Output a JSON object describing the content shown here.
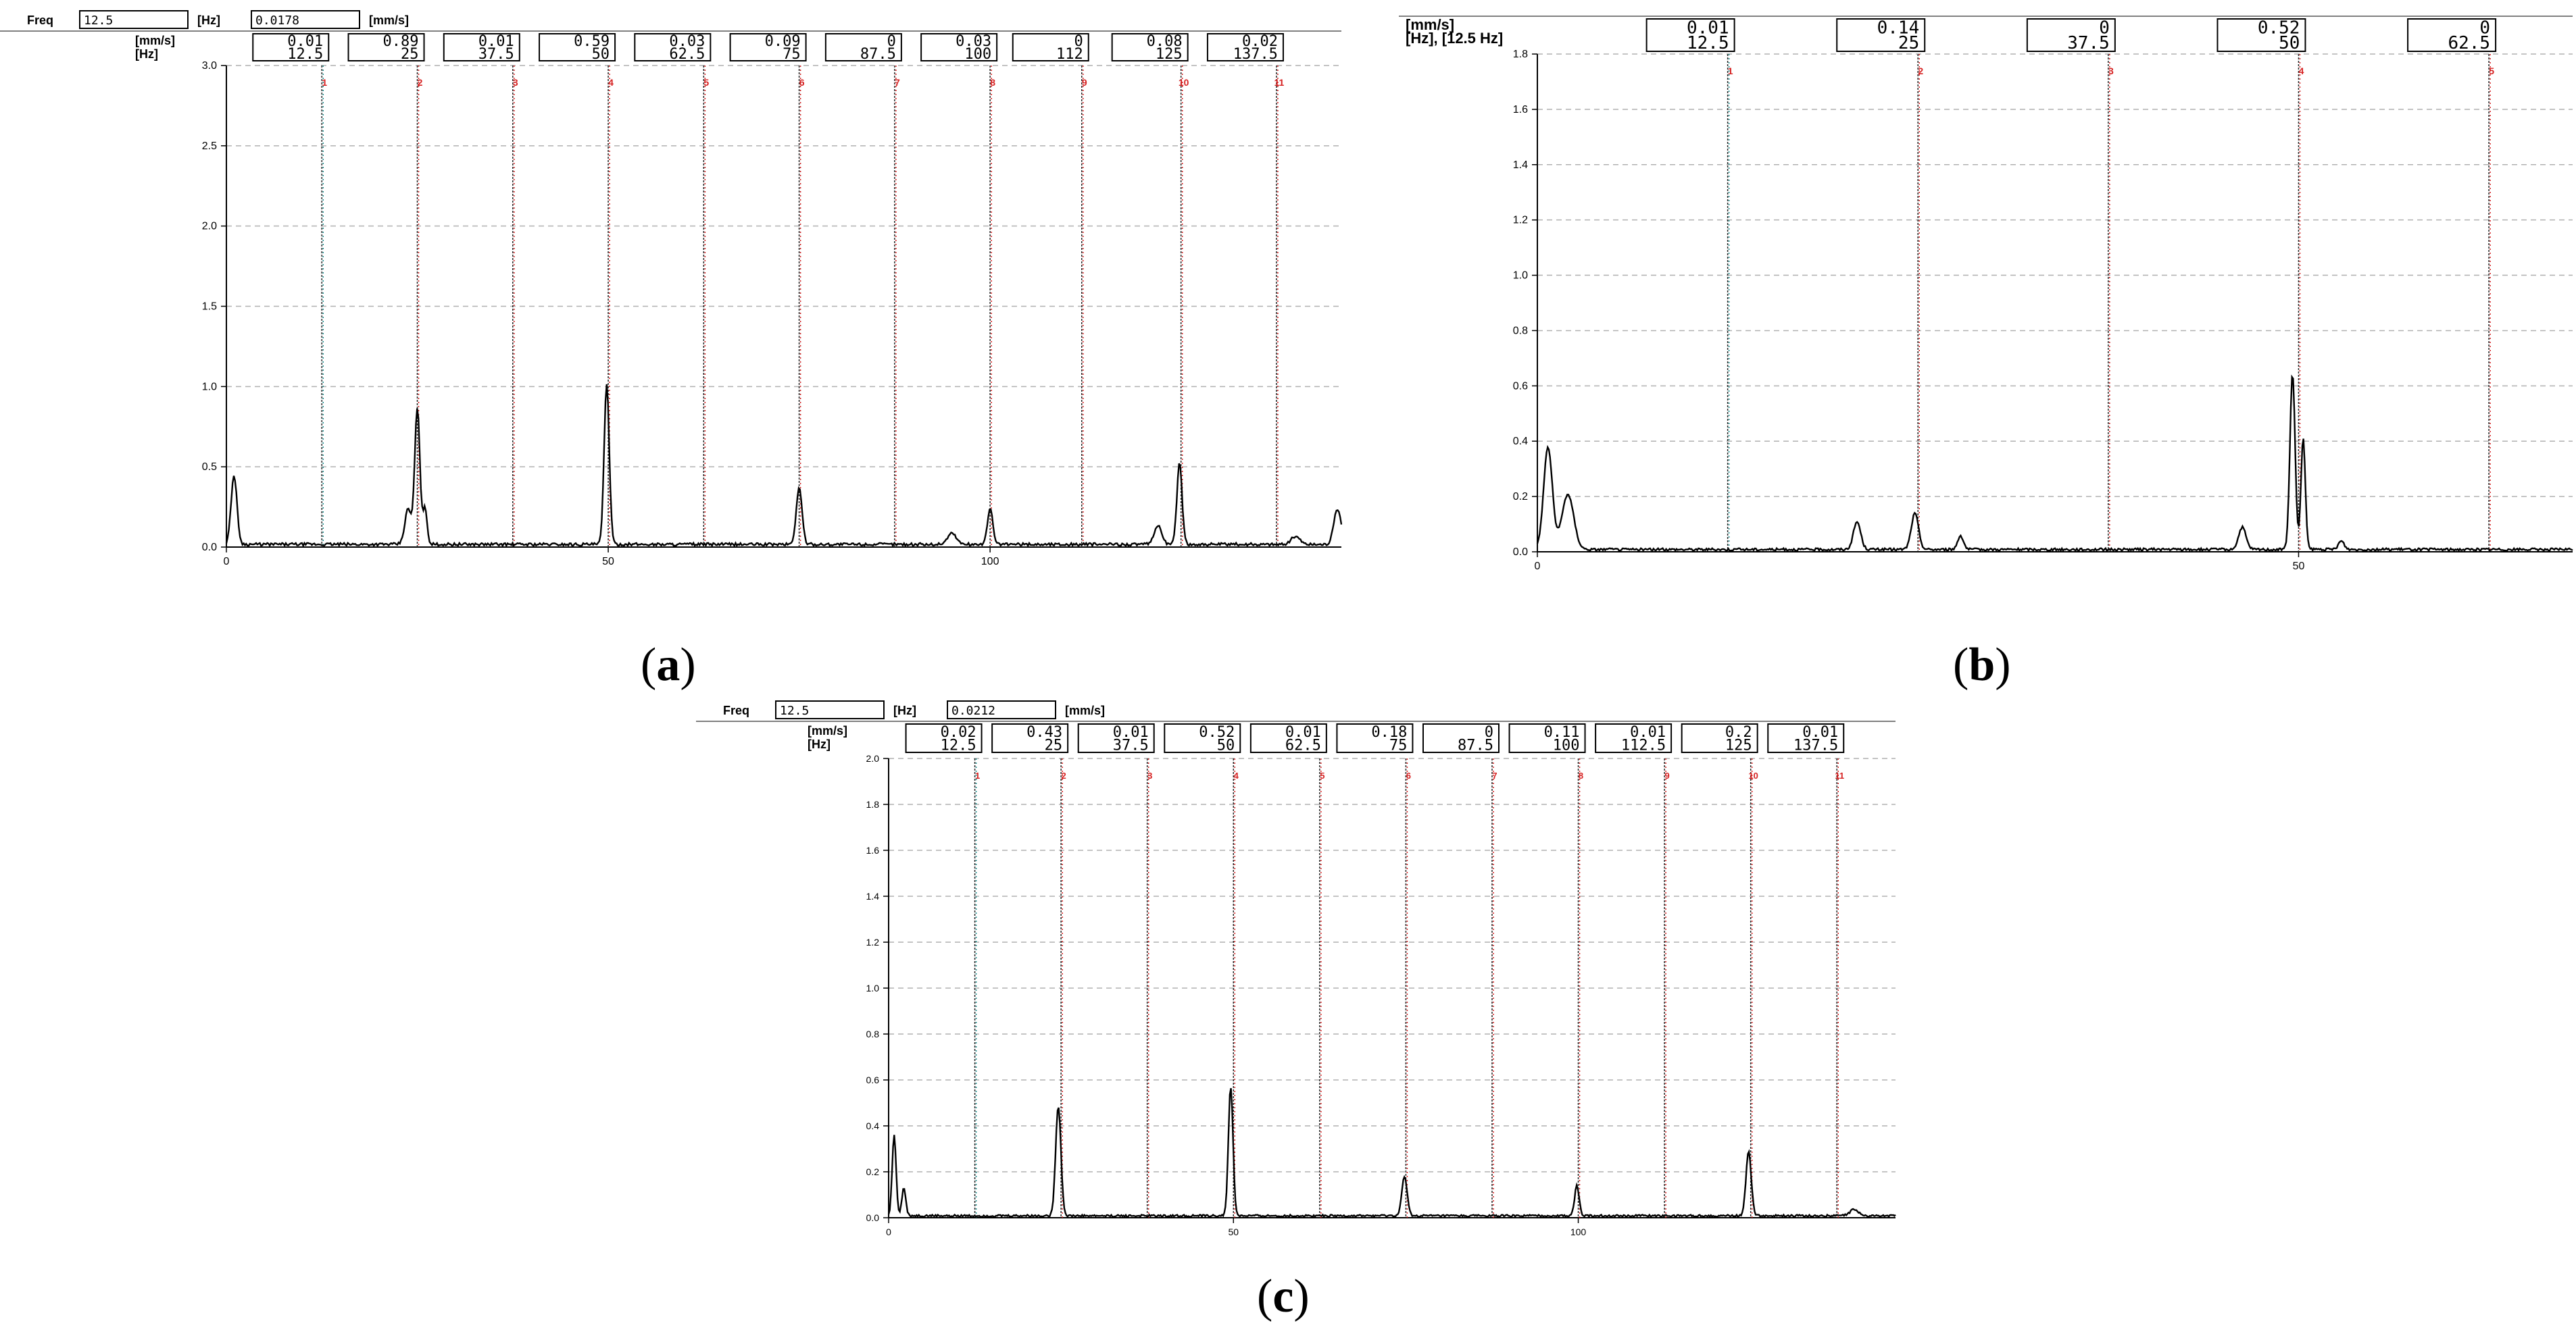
{
  "colors": {
    "trace": "#000000",
    "marker_red": "#d62020",
    "marker_teal": "#1a8c8c",
    "grid": "#b0b0b0",
    "axis": "#000000"
  },
  "captions": {
    "a": "a",
    "b": "b",
    "c": "c"
  },
  "chart_data": [
    {
      "id": "a",
      "type": "line",
      "freq_label": "Freq",
      "freq_value": "12.5",
      "freq_unit": "[Hz]",
      "amp_value": "0.0178",
      "amp_unit": "[mm/s]",
      "row_label_top": "[mm/s]",
      "row_label_bottom": "[Hz]",
      "xlim": [
        0,
        146
      ],
      "ylim": [
        0,
        3.0
      ],
      "yticks": [
        0.0,
        0.5,
        1.0,
        1.5,
        2.0,
        2.5,
        3.0
      ],
      "ytick_labels": [
        "0.0",
        "0.5",
        "1.0",
        "1.5",
        "2.0",
        "2.5",
        "3.0"
      ],
      "xticks": [
        0,
        50,
        100
      ],
      "xtick_labels": [
        "0",
        "50",
        "100"
      ],
      "grid": true,
      "markers": [
        {
          "freq": 12.5,
          "amp": "0.01",
          "hz": "12.5",
          "num": "1",
          "color": "teal"
        },
        {
          "freq": 25,
          "amp": "0.89",
          "hz": "25",
          "num": "2",
          "color": "red"
        },
        {
          "freq": 37.5,
          "amp": "0.01",
          "hz": "37.5",
          "num": "3",
          "color": "red"
        },
        {
          "freq": 50,
          "amp": "0.59",
          "hz": "50",
          "num": "4",
          "color": "red"
        },
        {
          "freq": 62.5,
          "amp": "0.03",
          "hz": "62.5",
          "num": "5",
          "color": "red"
        },
        {
          "freq": 75,
          "amp": "0.09",
          "hz": "75",
          "num": "6",
          "color": "red"
        },
        {
          "freq": 87.5,
          "amp": "0",
          "hz": "87.5",
          "num": "7",
          "color": "red"
        },
        {
          "freq": 100,
          "amp": "0.03",
          "hz": "100",
          "num": "8",
          "color": "red"
        },
        {
          "freq": 112,
          "amp": "0",
          "hz": "112",
          "num": "9",
          "color": "red"
        },
        {
          "freq": 125,
          "amp": "0.08",
          "hz": "125",
          "num": "10",
          "color": "red"
        },
        {
          "freq": 137.5,
          "amp": "0.02",
          "hz": "137.5",
          "num": "11",
          "color": "red"
        }
      ],
      "peaks": [
        {
          "x": 1.0,
          "y": 0.43,
          "w": 0.8
        },
        {
          "x": 23.8,
          "y": 0.22,
          "w": 0.9
        },
        {
          "x": 25.0,
          "y": 0.85,
          "w": 0.7
        },
        {
          "x": 26.0,
          "y": 0.22,
          "w": 0.6
        },
        {
          "x": 49.8,
          "y": 1.0,
          "w": 0.7
        },
        {
          "x": 75.0,
          "y": 0.35,
          "w": 0.8
        },
        {
          "x": 95.0,
          "y": 0.07,
          "w": 1.2
        },
        {
          "x": 100.0,
          "y": 0.23,
          "w": 0.7
        },
        {
          "x": 122.0,
          "y": 0.12,
          "w": 1.0
        },
        {
          "x": 124.8,
          "y": 0.51,
          "w": 0.7
        },
        {
          "x": 140.0,
          "y": 0.05,
          "w": 1.2
        },
        {
          "x": 145.5,
          "y": 0.22,
          "w": 1.0
        }
      ],
      "noise_floor": 0.02
    },
    {
      "id": "b",
      "type": "line",
      "row_label_top": "[mm/s]",
      "row_label_bottom": "[Hz], [12.5 Hz]",
      "xlim": [
        0,
        68
      ],
      "ylim": [
        0,
        1.8
      ],
      "yticks": [
        0.0,
        0.2,
        0.4,
        0.6,
        0.8,
        1.0,
        1.2,
        1.4,
        1.6,
        1.8
      ],
      "ytick_labels": [
        "0.0",
        "0.2",
        "0.4",
        "0.6",
        "0.8",
        "1.0",
        "1.2",
        "1.4",
        "1.6",
        "1.8"
      ],
      "xticks": [
        0,
        50
      ],
      "xtick_labels": [
        "0",
        "50"
      ],
      "grid": true,
      "markers": [
        {
          "freq": 12.5,
          "amp": "0.01",
          "hz": "12.5",
          "num": "1",
          "color": "teal"
        },
        {
          "freq": 25,
          "amp": "0.14",
          "hz": "25",
          "num": "2",
          "color": "red"
        },
        {
          "freq": 37.5,
          "amp": "0",
          "hz": "37.5",
          "num": "3",
          "color": "red"
        },
        {
          "freq": 50,
          "amp": "0.52",
          "hz": "50",
          "num": "4",
          "color": "red"
        },
        {
          "freq": 62.5,
          "amp": "0",
          "hz": "62.5",
          "num": "5",
          "color": "red"
        }
      ],
      "peaks": [
        {
          "x": 0.7,
          "y": 0.37,
          "w": 0.6
        },
        {
          "x": 2.0,
          "y": 0.2,
          "w": 0.8
        },
        {
          "x": 21.0,
          "y": 0.1,
          "w": 0.5
        },
        {
          "x": 24.8,
          "y": 0.13,
          "w": 0.5
        },
        {
          "x": 27.8,
          "y": 0.05,
          "w": 0.4
        },
        {
          "x": 46.3,
          "y": 0.08,
          "w": 0.5
        },
        {
          "x": 49.6,
          "y": 0.64,
          "w": 0.35
        },
        {
          "x": 50.3,
          "y": 0.4,
          "w": 0.3
        },
        {
          "x": 52.8,
          "y": 0.03,
          "w": 0.4
        }
      ],
      "noise_floor": 0.01
    },
    {
      "id": "c",
      "type": "line",
      "freq_label": "Freq",
      "freq_value": "12.5",
      "freq_unit": "[Hz]",
      "amp_value": "0.0212",
      "amp_unit": "[mm/s]",
      "row_label_top": "[mm/s]",
      "row_label_bottom": "[Hz]",
      "xlim": [
        0,
        146
      ],
      "ylim": [
        0,
        2.0
      ],
      "yticks": [
        0.0,
        0.2,
        0.4,
        0.6,
        0.8,
        1.0,
        1.2,
        1.4,
        1.6,
        1.8,
        2.0
      ],
      "ytick_labels": [
        "0.0",
        "0.2",
        "0.4",
        "0.6",
        "0.8",
        "1.0",
        "1.2",
        "1.4",
        "1.6",
        "1.8",
        "2.0"
      ],
      "xticks": [
        0,
        50,
        100
      ],
      "xtick_labels": [
        "0",
        "50",
        "100"
      ],
      "grid": true,
      "markers": [
        {
          "freq": 12.5,
          "amp": "0.02",
          "hz": "12.5",
          "num": "1",
          "color": "teal"
        },
        {
          "freq": 25,
          "amp": "0.43",
          "hz": "25",
          "num": "2",
          "color": "red"
        },
        {
          "freq": 37.5,
          "amp": "0.01",
          "hz": "37.5",
          "num": "3",
          "color": "red"
        },
        {
          "freq": 50,
          "amp": "0.52",
          "hz": "50",
          "num": "4",
          "color": "red"
        },
        {
          "freq": 62.5,
          "amp": "0.01",
          "hz": "62.5",
          "num": "5",
          "color": "red"
        },
        {
          "freq": 75,
          "amp": "0.18",
          "hz": "75",
          "num": "6",
          "color": "red"
        },
        {
          "freq": 87.5,
          "amp": "0",
          "hz": "87.5",
          "num": "7",
          "color": "red"
        },
        {
          "freq": 100,
          "amp": "0.11",
          "hz": "100",
          "num": "8",
          "color": "red"
        },
        {
          "freq": 112.5,
          "amp": "0.01",
          "hz": "112.5",
          "num": "9",
          "color": "red"
        },
        {
          "freq": 125,
          "amp": "0.2",
          "hz": "125",
          "num": "10",
          "color": "red"
        },
        {
          "freq": 137.5,
          "amp": "0.01",
          "hz": "137.5",
          "num": "11",
          "color": "red"
        }
      ],
      "peaks": [
        {
          "x": 0.8,
          "y": 0.35,
          "w": 0.6
        },
        {
          "x": 2.2,
          "y": 0.12,
          "w": 0.6
        },
        {
          "x": 24.6,
          "y": 0.48,
          "w": 0.8
        },
        {
          "x": 49.6,
          "y": 0.56,
          "w": 0.7
        },
        {
          "x": 74.8,
          "y": 0.17,
          "w": 0.8
        },
        {
          "x": 99.8,
          "y": 0.13,
          "w": 0.7
        },
        {
          "x": 124.7,
          "y": 0.28,
          "w": 0.8
        },
        {
          "x": 140.0,
          "y": 0.03,
          "w": 1.2
        }
      ],
      "noise_floor": 0.01
    }
  ]
}
